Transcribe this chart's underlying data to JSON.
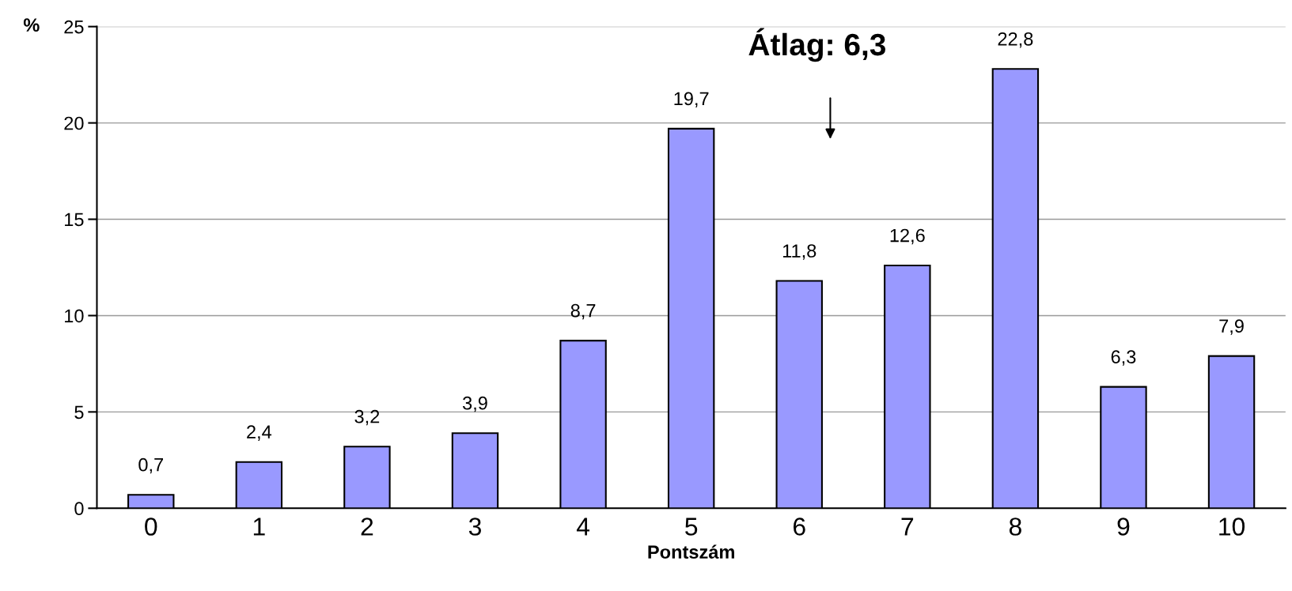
{
  "chart_data": {
    "type": "bar",
    "categories": [
      "0",
      "1",
      "2",
      "3",
      "4",
      "5",
      "6",
      "7",
      "8",
      "9",
      "10"
    ],
    "values": [
      0.7,
      2.4,
      3.2,
      3.9,
      8.7,
      19.7,
      11.8,
      12.6,
      22.8,
      6.3,
      7.9
    ],
    "value_labels": [
      "0,7",
      "2,4",
      "3,2",
      "3,9",
      "8,7",
      "19,7",
      "11,8",
      "12,6",
      "22,8",
      "6,3",
      "7,9"
    ],
    "color": "#9999ff",
    "xlabel": "Pontszám",
    "ylabel": "%",
    "ylim": [
      0,
      25
    ],
    "yticks": [
      0,
      5,
      10,
      15,
      20,
      25
    ],
    "grid": "y",
    "legend": false,
    "annotations": [
      "Átlag: 6,3"
    ]
  }
}
